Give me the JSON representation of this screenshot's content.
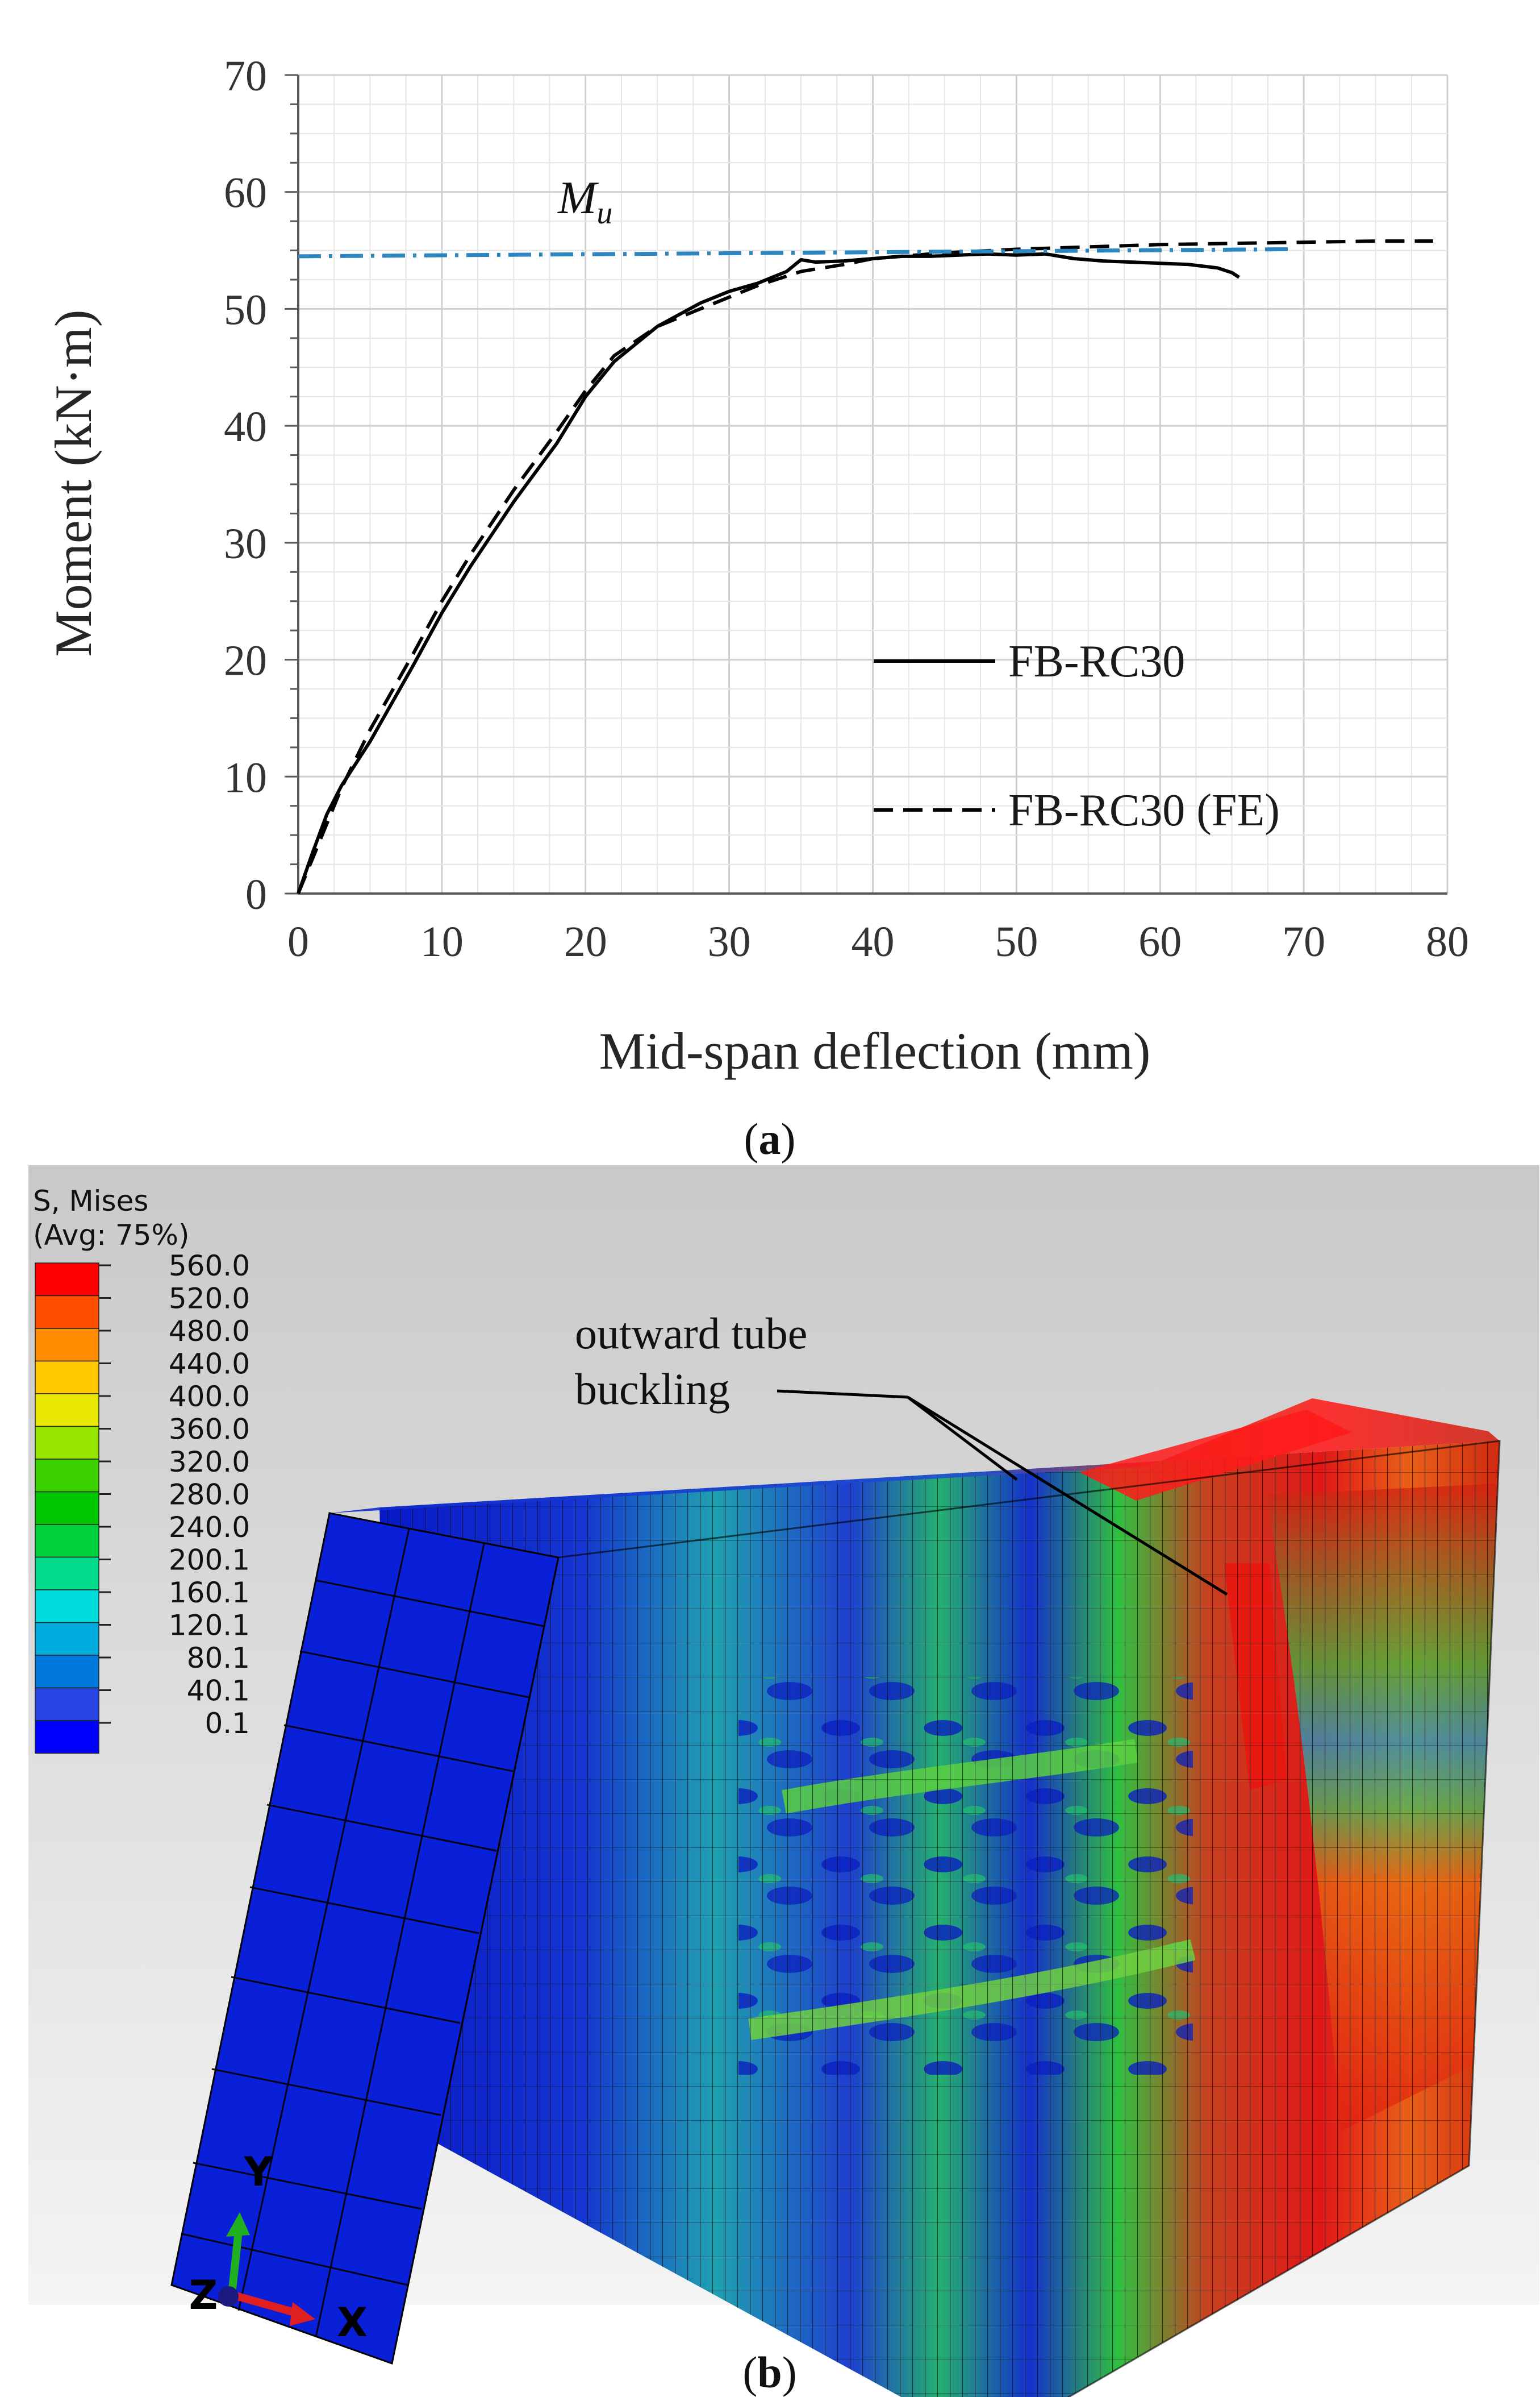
{
  "panel_a": {
    "caption": "a",
    "chart_data": {
      "type": "line",
      "title": "",
      "xlabel": "Mid-span deflection (mm)",
      "ylabel": "Moment (kN·m)",
      "xlim": [
        0,
        80
      ],
      "ylim": [
        0,
        70
      ],
      "xticks": [
        0,
        10,
        20,
        30,
        40,
        50,
        60,
        70,
        80
      ],
      "yticks": [
        0,
        10,
        20,
        30,
        40,
        50,
        60,
        70
      ],
      "grid": true,
      "annotation": {
        "symbol": "M",
        "subscript": "u"
      },
      "series": [
        {
          "name": "FB-RC30",
          "style": "solid",
          "color": "#000000",
          "x": [
            0,
            1,
            2,
            3,
            5,
            8,
            10,
            12,
            15,
            18,
            20,
            22,
            25,
            28,
            30,
            32,
            34,
            35,
            36,
            38,
            40,
            42,
            44,
            46,
            48,
            50,
            52,
            54,
            56,
            58,
            60,
            62,
            64,
            65,
            65.5
          ],
          "y": [
            0,
            3.5,
            6.8,
            9.2,
            13,
            19.5,
            24,
            28,
            33.5,
            38.5,
            42.5,
            45.5,
            48.5,
            50.5,
            51.5,
            52.2,
            53.2,
            54.2,
            54,
            54.1,
            54.3,
            54.5,
            54.5,
            54.6,
            54.7,
            54.6,
            54.7,
            54.3,
            54.1,
            54.0,
            53.9,
            53.8,
            53.5,
            53.1,
            52.7
          ]
        },
        {
          "name": "FB-RC30 (FE)",
          "style": "dashed",
          "color": "#000000",
          "x": [
            0,
            1,
            2,
            3,
            5,
            8,
            10,
            12,
            15,
            18,
            20,
            22,
            25,
            28,
            30,
            32,
            35,
            38,
            40,
            45,
            50,
            55,
            60,
            65,
            70,
            75,
            79
          ],
          "y": [
            0,
            3,
            6,
            9,
            14,
            20.5,
            25,
            29,
            34.5,
            39.5,
            43,
            46,
            48.5,
            50,
            51,
            52,
            53.2,
            53.8,
            54.3,
            54.8,
            55.1,
            55.3,
            55.5,
            55.6,
            55.7,
            55.8,
            55.8
          ]
        },
        {
          "name": "Mu",
          "style": "dash-dot",
          "color": "#2e86c1",
          "x": [
            0,
            69
          ],
          "y": [
            54.5,
            55.1
          ]
        }
      ]
    }
  },
  "panel_b": {
    "caption": "b",
    "legend": {
      "title_line1": "S, Mises",
      "title_line2": "(Avg: 75%)",
      "values": [
        "560.0",
        "520.0",
        "480.0",
        "440.0",
        "400.0",
        "360.0",
        "320.0",
        "280.0",
        "240.0",
        "200.1",
        "160.1",
        "120.1",
        "80.1",
        "40.1",
        "0.1"
      ],
      "colors": [
        "#ff0000",
        "#ff4d00",
        "#ff8c00",
        "#ffc800",
        "#e8e800",
        "#96e600",
        "#3cd200",
        "#00c800",
        "#00d23c",
        "#00dc8c",
        "#00dcdc",
        "#00aadc",
        "#0078dc",
        "#2846e6",
        "#0000ff"
      ]
    },
    "annotation_line1": "outward tube",
    "annotation_line2": "buckling",
    "axes": {
      "y": "Y",
      "x": "X",
      "z": "Z"
    },
    "colors": {
      "x_axis": "#e02020",
      "y_axis": "#20b020",
      "z_axis": "#1a1a80",
      "background_top": "#c9c9c9",
      "background_bottom": "#f4f4f4",
      "block": "#0a1fd8"
    }
  }
}
